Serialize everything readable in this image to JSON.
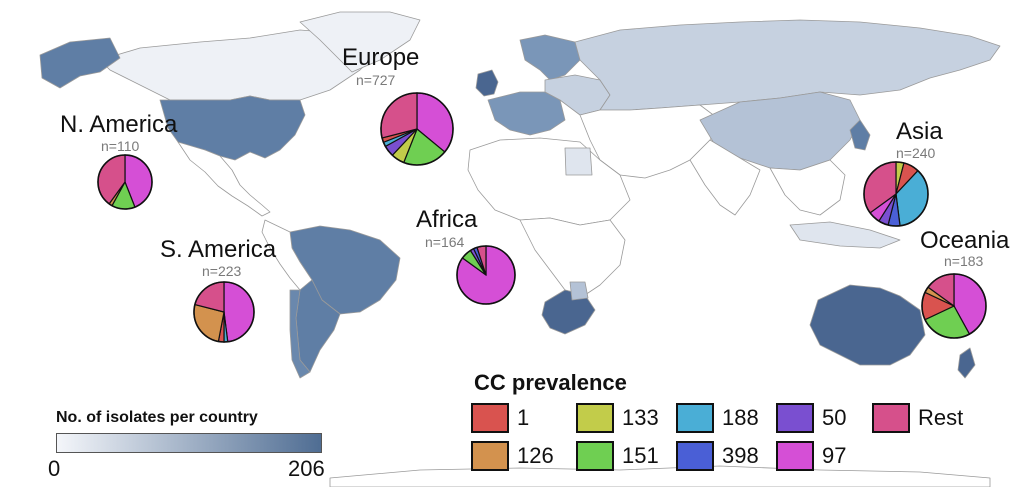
{
  "colors": {
    "ocean": "#ffffff",
    "land_none": "#ffffff",
    "country_border": "#9a9a9a",
    "scale_low": "#f4f6fa",
    "scale_high": "#4f6d93"
  },
  "cc_legend": {
    "title": "CC prevalence",
    "items": [
      {
        "label": "1",
        "color": "#d9534f"
      },
      {
        "label": "133",
        "color": "#c2cc4a"
      },
      {
        "label": "188",
        "color": "#4aaed6"
      },
      {
        "label": "50",
        "color": "#7a4fd0"
      },
      {
        "label": "Rest",
        "color": "#d6508b"
      },
      {
        "label": "126",
        "color": "#d3924e"
      },
      {
        "label": "151",
        "color": "#6fcf52"
      },
      {
        "label": "398",
        "color": "#4a5fd6"
      },
      {
        "label": "97",
        "color": "#d54fd6"
      }
    ]
  },
  "scale_legend": {
    "title": "No. of isolates per country",
    "min_label": "0",
    "max_label": "206"
  },
  "chart_data": {
    "type": "pie",
    "regions": [
      {
        "name": "Europe",
        "n_label": "n=727",
        "slices": [
          {
            "cc": "97",
            "value": 36
          },
          {
            "cc": "151",
            "value": 20
          },
          {
            "cc": "133",
            "value": 6
          },
          {
            "cc": "50",
            "value": 5
          },
          {
            "cc": "188",
            "value": 2
          },
          {
            "cc": "1",
            "value": 2
          },
          {
            "cc": "Rest",
            "value": 29
          }
        ]
      },
      {
        "name": "N. America",
        "n_label": "n=110",
        "slices": [
          {
            "cc": "97",
            "value": 44
          },
          {
            "cc": "151",
            "value": 14
          },
          {
            "cc": "126",
            "value": 2
          },
          {
            "cc": "Rest",
            "value": 40
          }
        ]
      },
      {
        "name": "S. America",
        "n_label": "n=223",
        "slices": [
          {
            "cc": "97",
            "value": 48
          },
          {
            "cc": "188",
            "value": 2
          },
          {
            "cc": "1",
            "value": 3
          },
          {
            "cc": "126",
            "value": 26
          },
          {
            "cc": "Rest",
            "value": 21
          }
        ]
      },
      {
        "name": "Africa",
        "n_label": "n=164",
        "slices": [
          {
            "cc": "97",
            "value": 85
          },
          {
            "cc": "151",
            "value": 6
          },
          {
            "cc": "50",
            "value": 2
          },
          {
            "cc": "398",
            "value": 2
          },
          {
            "cc": "Rest",
            "value": 5
          }
        ]
      },
      {
        "name": "Asia",
        "n_label": "n=240",
        "slices": [
          {
            "cc": "133",
            "value": 4
          },
          {
            "cc": "1",
            "value": 8
          },
          {
            "cc": "188",
            "value": 36
          },
          {
            "cc": "398",
            "value": 6
          },
          {
            "cc": "50",
            "value": 5
          },
          {
            "cc": "97",
            "value": 6
          },
          {
            "cc": "Rest",
            "value": 35
          }
        ]
      },
      {
        "name": "Oceania",
        "n_label": "n=183",
        "slices": [
          {
            "cc": "97",
            "value": 42
          },
          {
            "cc": "151",
            "value": 26
          },
          {
            "cc": "1",
            "value": 14
          },
          {
            "cc": "126",
            "value": 3
          },
          {
            "cc": "Rest",
            "value": 15
          }
        ]
      }
    ]
  }
}
